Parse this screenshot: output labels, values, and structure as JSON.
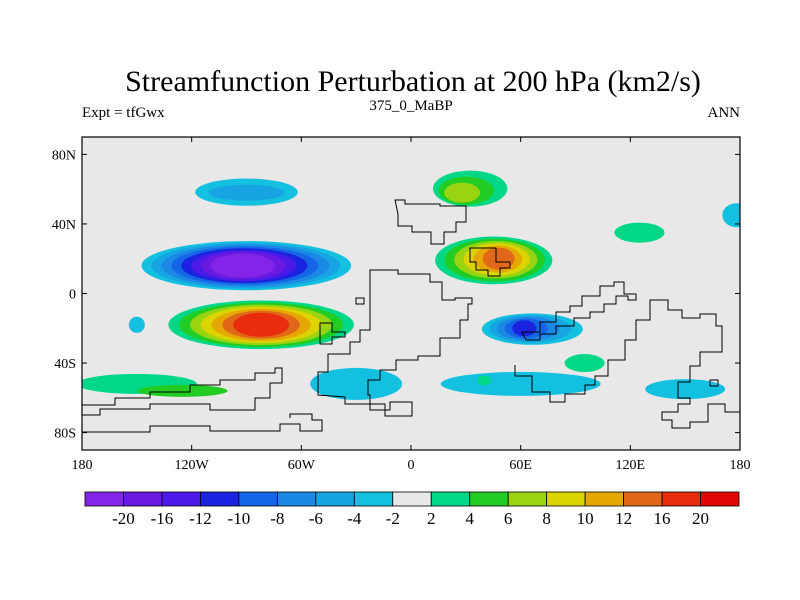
{
  "chart_data": {
    "type": "heatmap",
    "title": "Streamfunction Perturbation at 200 hPa (km2/s)",
    "left_label": "Expt = tfGwx",
    "center_label": "375_0_MaBP",
    "right_label": "ANN",
    "x_ticks": [
      {
        "value": -180,
        "label": "180"
      },
      {
        "value": -120,
        "label": "120W"
      },
      {
        "value": -60,
        "label": "60W"
      },
      {
        "value": 0,
        "label": "0"
      },
      {
        "value": 60,
        "label": "60E"
      },
      {
        "value": 120,
        "label": "120E"
      },
      {
        "value": 180,
        "label": "180"
      }
    ],
    "y_ticks": [
      {
        "value": 80,
        "label": "80N"
      },
      {
        "value": 40,
        "label": "40N"
      },
      {
        "value": 0,
        "label": "0"
      },
      {
        "value": -40,
        "label": "40S"
      },
      {
        "value": -80,
        "label": "80S"
      }
    ],
    "xlim": [
      -180,
      180
    ],
    "ylim": [
      -90,
      90
    ],
    "colorbar": {
      "levels": [
        -20,
        -16,
        -12,
        -10,
        -8,
        -6,
        -4,
        -2,
        2,
        4,
        6,
        8,
        10,
        12,
        16,
        20
      ],
      "labels": [
        "-20",
        "-16",
        "-12",
        "-10",
        "-8",
        "-6",
        "-4",
        "-2",
        "2",
        "4",
        "6",
        "8",
        "10",
        "12",
        "16",
        "20"
      ],
      "colors": [
        "#8424e8",
        "#6a1ae0",
        "#4b1ae8",
        "#1a24e0",
        "#1466e6",
        "#1c88e6",
        "#16a4e2",
        "#14c0e0",
        "#e8e8e8",
        "#00d888",
        "#22cc22",
        "#98d412",
        "#dcd400",
        "#e4a800",
        "#e06818",
        "#e82c0c",
        "#e00606"
      ]
    },
    "field_features": [
      {
        "name": "NH subtropical negative center",
        "lon": -92,
        "lat": 16,
        "value": -21
      },
      {
        "name": "SH subtropical positive center",
        "lon": -82,
        "lat": -18,
        "value": 17
      },
      {
        "name": "North Pacific negative high-lat",
        "lon": -90,
        "lat": 58,
        "value": -5
      },
      {
        "name": "Asian positive center",
        "lon": 48,
        "lat": 20,
        "value": 14
      },
      {
        "name": "Eurasian positive high-lat",
        "lon": 28,
        "lat": 58,
        "value": 7
      },
      {
        "name": "Indian Ocean negative center",
        "lon": 62,
        "lat": -20,
        "value": -11
      }
    ]
  }
}
